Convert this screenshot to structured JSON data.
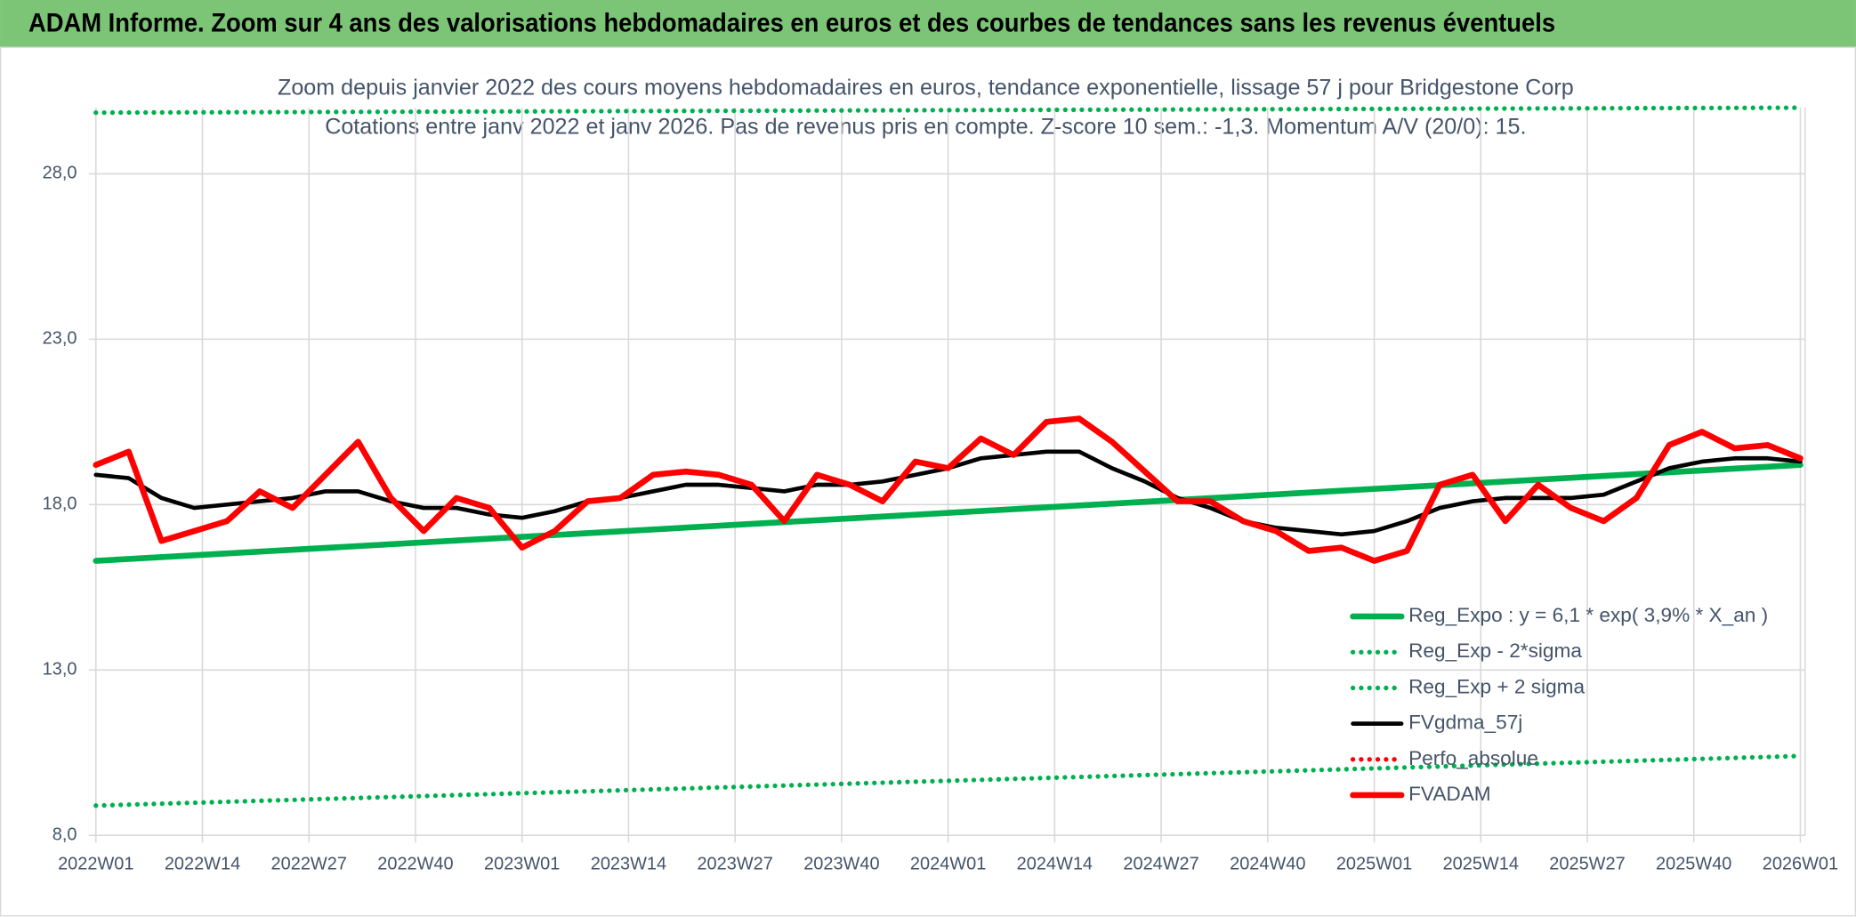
{
  "header": {
    "title": "ADAM Informe. Zoom sur 4 ans des valorisations hebdomadaires en euros et des courbes de tendances sans les revenus éventuels"
  },
  "chart_data": {
    "type": "line",
    "title": "Zoom depuis janvier 2022  des cours moyens hebdomadaires en euros, tendance exponentielle, lissage 57 j pour Bridgestone Corp",
    "subtitle": "Cotations entre janv 2022 et janv 2026. Pas de revenus pris en compte. Z-score 10 sem.: -1,3. Momentum A/V (20/0): 15.",
    "x": [
      0,
      4,
      8,
      12,
      16,
      20,
      24,
      28,
      32,
      36,
      40,
      44,
      48,
      52,
      56,
      60,
      64,
      68,
      72,
      76,
      80,
      84,
      88,
      92,
      96,
      100,
      104,
      108,
      112,
      116,
      120,
      124,
      128,
      132,
      136,
      140,
      144,
      148,
      152,
      156,
      160,
      164,
      168,
      172,
      176,
      180,
      184,
      188,
      192,
      196,
      200,
      204,
      208
    ],
    "xlim": [
      0,
      208
    ],
    "xticks": [
      {
        "value": 0,
        "label": "2022W01"
      },
      {
        "value": 13,
        "label": "2022W14"
      },
      {
        "value": 26,
        "label": "2022W27"
      },
      {
        "value": 39,
        "label": "2022W40"
      },
      {
        "value": 52,
        "label": "2023W01"
      },
      {
        "value": 65,
        "label": "2023W14"
      },
      {
        "value": 78,
        "label": "2023W27"
      },
      {
        "value": 91,
        "label": "2023W40"
      },
      {
        "value": 104,
        "label": "2024W01"
      },
      {
        "value": 117,
        "label": "2024W14"
      },
      {
        "value": 130,
        "label": "2024W27"
      },
      {
        "value": 143,
        "label": "2024W40"
      },
      {
        "value": 156,
        "label": "2025W01"
      },
      {
        "value": 169,
        "label": "2025W14"
      },
      {
        "value": 182,
        "label": "2025W27"
      },
      {
        "value": 195,
        "label": "2025W40"
      },
      {
        "value": 208,
        "label": "2026W01"
      }
    ],
    "ylim": [
      8,
      30
    ],
    "yticks": [
      {
        "value": 8,
        "label": "8,0"
      },
      {
        "value": 13,
        "label": "13,0"
      },
      {
        "value": 18,
        "label": "18,0"
      },
      {
        "value": 23,
        "label": "23,0"
      },
      {
        "value": 28,
        "label": "28,0"
      }
    ],
    "grid": true,
    "legend": "lower right",
    "series": [
      {
        "name": "Reg_Expo : y = 6,1 * exp( 3,9% *  X_an )",
        "color": "#00b050",
        "style": "solid",
        "x": [
          0,
          208
        ],
        "values": [
          16.3,
          19.2
        ]
      },
      {
        "name": "Reg_Exp - 2*sigma",
        "color": "#00b050",
        "style": "dotted",
        "x": [
          0,
          208
        ],
        "values": [
          8.9,
          10.4
        ]
      },
      {
        "name": "Reg_Exp + 2 sigma",
        "color": "#00b050",
        "style": "dotted",
        "x": [
          0,
          208
        ],
        "values": [
          29.85,
          30
        ]
      },
      {
        "name": "FVgdma_57j",
        "color": "#000000",
        "style": "solid",
        "values": [
          18.9,
          18.8,
          18.2,
          17.9,
          18.0,
          18.1,
          18.2,
          18.4,
          18.4,
          18.1,
          17.9,
          17.9,
          17.7,
          17.6,
          17.8,
          18.1,
          18.2,
          18.4,
          18.6,
          18.6,
          18.5,
          18.4,
          18.6,
          18.6,
          18.7,
          18.9,
          19.1,
          19.4,
          19.5,
          19.6,
          19.6,
          19.1,
          18.7,
          18.2,
          17.9,
          17.5,
          17.3,
          17.2,
          17.1,
          17.2,
          17.5,
          17.9,
          18.1,
          18.2,
          18.2,
          18.2,
          18.3,
          18.7,
          19.1,
          19.3,
          19.4,
          19.4,
          19.3
        ]
      },
      {
        "name": "Perfo_absolue",
        "color": "#ff0000",
        "style": "dotted",
        "x": [],
        "values": []
      },
      {
        "name": "FVADAM",
        "color": "#ff0000",
        "style": "solid",
        "values": [
          19.2,
          19.6,
          16.9,
          17.2,
          17.5,
          18.4,
          17.9,
          18.9,
          19.9,
          18.2,
          17.2,
          18.2,
          17.9,
          16.7,
          17.2,
          18.1,
          18.2,
          18.9,
          19.0,
          18.9,
          18.6,
          17.5,
          18.9,
          18.6,
          18.1,
          19.3,
          19.1,
          20.0,
          19.5,
          20.5,
          20.6,
          19.9,
          19.0,
          18.1,
          18.1,
          17.5,
          17.2,
          16.6,
          16.7,
          16.3,
          16.6,
          18.6,
          18.9,
          17.5,
          18.6,
          17.9,
          17.5,
          18.2,
          19.8,
          20.2,
          19.7,
          19.8,
          19.4
        ]
      }
    ]
  }
}
